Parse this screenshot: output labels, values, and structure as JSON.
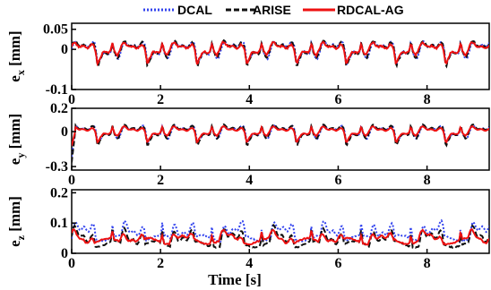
{
  "chart_data": {
    "type": "line",
    "legend": {
      "placement": "top",
      "entries": [
        {
          "name": "DCAL",
          "color": "#3344ee",
          "dash": "dotted"
        },
        {
          "name": "ARISE",
          "color": "#111111",
          "dash": "dashed"
        },
        {
          "name": "RDCAL-AG",
          "color": "#ee1111",
          "dash": "solid"
        }
      ]
    },
    "xlabel": "Time [s]",
    "xlim": [
      0,
      9.4
    ],
    "xticks": [
      "0",
      "2",
      "4",
      "6",
      "8"
    ],
    "xtick_values": [
      0,
      2,
      4,
      6,
      8
    ],
    "grid": false,
    "panels": [
      {
        "ylabel": "e_x [mm]",
        "ylabel_main": "e",
        "ylabel_sub": "x",
        "ylabel_unit": "[mm]",
        "ylim": [
          -0.1,
          0.065
        ],
        "yticks": [
          "0.05",
          "0",
          "-0.1"
        ],
        "ytick_values": [
          0.05,
          0,
          -0.1
        ],
        "series": [
          {
            "name": "DCAL",
            "amplitude": 0.045,
            "offset": 0.0,
            "dip": -0.08
          },
          {
            "name": "ARISE",
            "amplitude": 0.045,
            "offset": 0.0,
            "dip": -0.065
          },
          {
            "name": "RDCAL-AG",
            "amplitude": 0.035,
            "offset": 0.0,
            "dip": -0.045
          }
        ]
      },
      {
        "ylabel": "e_y [mm]",
        "ylabel_main": "e",
        "ylabel_sub": "y",
        "ylabel_unit": "[mm]",
        "ylim": [
          -0.33,
          0.2
        ],
        "yticks": [
          "0.2",
          "0",
          "-0.3"
        ],
        "ytick_values": [
          0.2,
          0,
          -0.3
        ],
        "series": [
          {
            "name": "DCAL",
            "amplitude": 0.12,
            "offset": 0.0,
            "dip": -0.18
          },
          {
            "name": "ARISE",
            "amplitude": 0.13,
            "offset": 0.0,
            "dip": -0.22
          },
          {
            "name": "RDCAL-AG",
            "amplitude": 0.09,
            "offset": 0.0,
            "dip": -0.1
          }
        ]
      },
      {
        "ylabel": "e_z [mm]",
        "ylabel_main": "e",
        "ylabel_sub": "z",
        "ylabel_unit": "[mm]",
        "ylim": [
          0,
          0.21
        ],
        "yticks": [
          "0.2",
          "0.1",
          "0"
        ],
        "ytick_values": [
          0.2,
          0.1,
          0
        ],
        "series": [
          {
            "name": "DCAL",
            "amplitude": 0.19,
            "offset": 0.05,
            "dip": 0.04
          },
          {
            "name": "ARISE",
            "amplitude": 0.16,
            "offset": 0.03,
            "dip": 0.02
          },
          {
            "name": "RDCAL-AG",
            "amplitude": 0.11,
            "offset": 0.04,
            "dip": 0.03
          }
        ]
      }
    ]
  }
}
